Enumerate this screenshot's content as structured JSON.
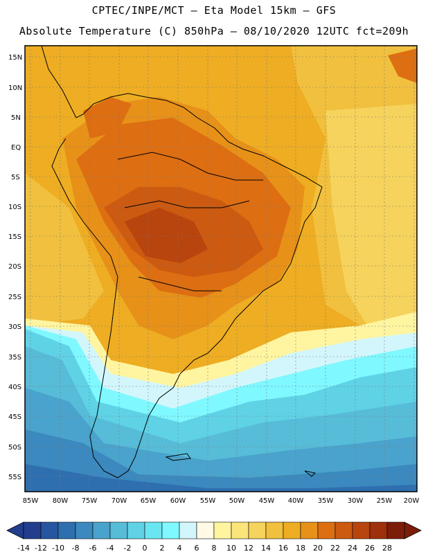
{
  "header": {
    "line1": "CPTEC/INPE/MCT –  Eta Model 15km – GFS",
    "line2": "Absolute Temperature (C) 850hPa – 08/10/2020 12UTC fct=209h"
  },
  "map": {
    "lat_labels": [
      "15N",
      "10N",
      "5N",
      "EQ",
      "5S",
      "10S",
      "15S",
      "20S",
      "25S",
      "30S",
      "35S",
      "40S",
      "45S",
      "50S",
      "55S"
    ],
    "lon_labels": [
      "85W",
      "80W",
      "75W",
      "70W",
      "65W",
      "60W",
      "55W",
      "50W",
      "45W",
      "40W",
      "35W",
      "30W",
      "25W",
      "20W"
    ]
  },
  "colorbar": {
    "colors": [
      "#223e8c",
      "#2756a0",
      "#2e6fb0",
      "#3b89be",
      "#4aa3cc",
      "#57bcd8",
      "#5fd2e6",
      "#6ae6f2",
      "#7ff8ff",
      "#d2f6fb",
      "#fff9e6",
      "#fff5a0",
      "#fbe47a",
      "#f6d35c",
      "#f1c03e",
      "#eead22",
      "#e79119",
      "#dd6e12",
      "#cc5a10",
      "#b8440e",
      "#9e300c",
      "#7c1d0a"
    ],
    "labels": [
      "-14",
      "-12",
      "-10",
      "-8",
      "-6",
      "-4",
      "-2",
      "0",
      "2",
      "4",
      "6",
      "8",
      "10",
      "12",
      "14",
      "16",
      "18",
      "20",
      "22",
      "24",
      "26",
      "28"
    ]
  }
}
